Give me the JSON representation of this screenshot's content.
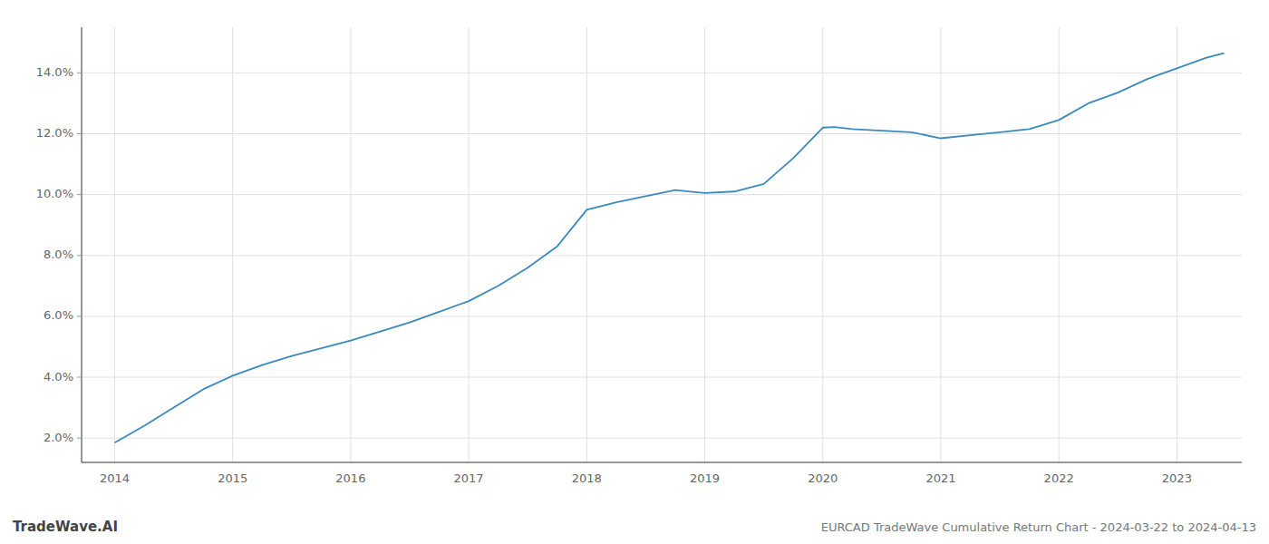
{
  "chart_data": {
    "type": "line",
    "title": "EURCAD TradeWave Cumulative Return Chart - 2024-03-22 to 2024-04-13",
    "annotations": [
      "TradeWave.AI"
    ],
    "color": "#3a8abf",
    "grid": true,
    "x": [
      2014.0,
      2014.25,
      2014.5,
      2014.75,
      2015.0,
      2015.25,
      2015.5,
      2015.75,
      2016.0,
      2016.25,
      2016.5,
      2016.75,
      2017.0,
      2017.25,
      2017.5,
      2017.75,
      2018.0,
      2018.25,
      2018.5,
      2018.75,
      2019.0,
      2019.25,
      2019.5,
      2019.75,
      2020.0,
      2020.1,
      2020.25,
      2020.5,
      2020.75,
      2021.0,
      2021.25,
      2021.5,
      2021.75,
      2022.0,
      2022.25,
      2022.5,
      2022.75,
      2023.0,
      2023.25,
      2023.4
    ],
    "values": [
      1.85,
      2.4,
      3.0,
      3.6,
      4.05,
      4.4,
      4.7,
      4.95,
      5.2,
      5.5,
      5.8,
      6.15,
      6.5,
      7.0,
      7.6,
      8.3,
      9.5,
      9.75,
      9.95,
      10.15,
      10.05,
      10.1,
      10.35,
      11.2,
      12.2,
      12.22,
      12.15,
      12.1,
      12.05,
      11.85,
      11.95,
      12.05,
      12.15,
      12.45,
      13.0,
      13.35,
      13.8,
      14.15,
      14.5,
      14.65
    ],
    "xlim": [
      2013.72,
      2023.55
    ],
    "ylim": [
      1.2,
      15.5
    ],
    "xticks": [
      2014,
      2015,
      2016,
      2017,
      2018,
      2019,
      2020,
      2021,
      2022,
      2023
    ],
    "yticks": [
      {
        "value": 2.0,
        "label": "2.0%"
      },
      {
        "value": 4.0,
        "label": "4.0%"
      },
      {
        "value": 6.0,
        "label": "6.0%"
      },
      {
        "value": 8.0,
        "label": "8.0%"
      },
      {
        "value": 10.0,
        "label": "10.0%"
      },
      {
        "value": 12.0,
        "label": "12.0%"
      },
      {
        "value": 14.0,
        "label": "14.0%"
      }
    ]
  }
}
